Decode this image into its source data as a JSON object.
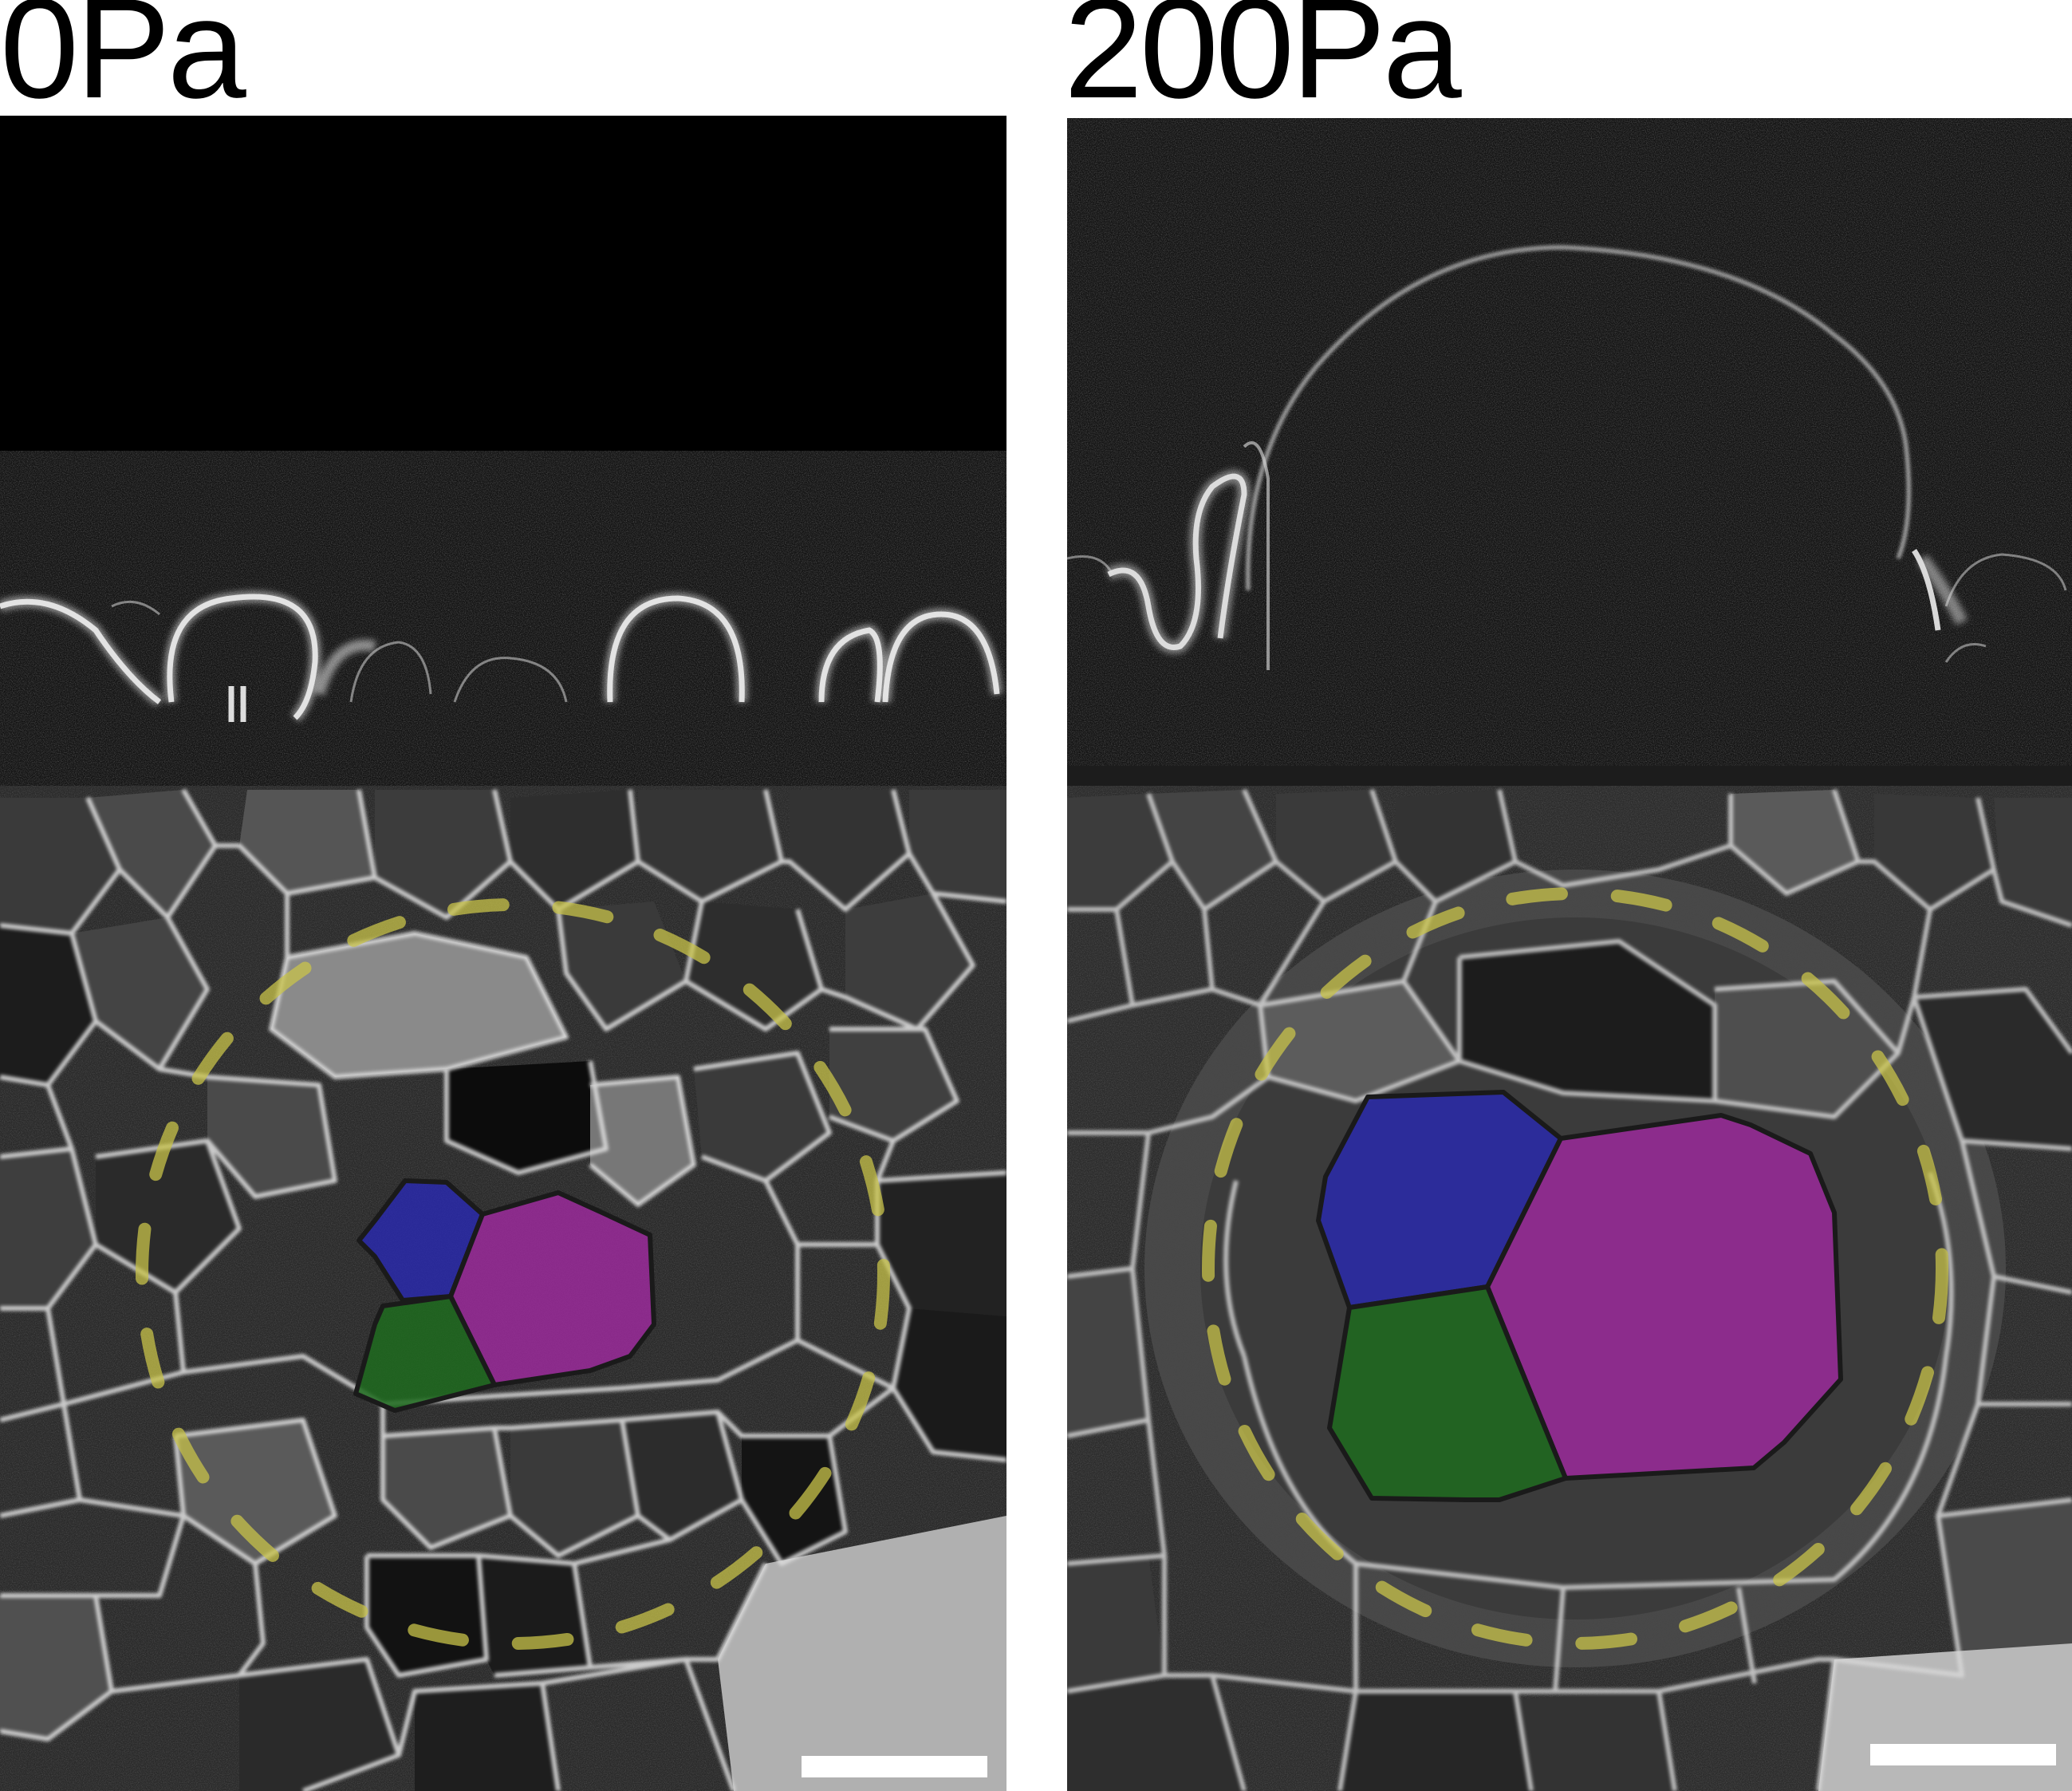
{
  "panels": [
    {
      "label": "0Pa"
    },
    {
      "label": "200Pa"
    }
  ],
  "colors": {
    "background": "#ffffff",
    "image_black": "#000000",
    "noise_dark": "#101010",
    "membrane_stain": "#d8d8d8",
    "ring_dashed_yellow": "#c8c34a",
    "cell_blue": "#2a2ab0",
    "cell_green": "#1f6b1f",
    "cell_magenta": "#9b2a9b",
    "scale_bar": "#ffffff"
  },
  "highlighted_cells": [
    "blue",
    "magenta",
    "green"
  ],
  "icons": [
    "scale-bar"
  ]
}
